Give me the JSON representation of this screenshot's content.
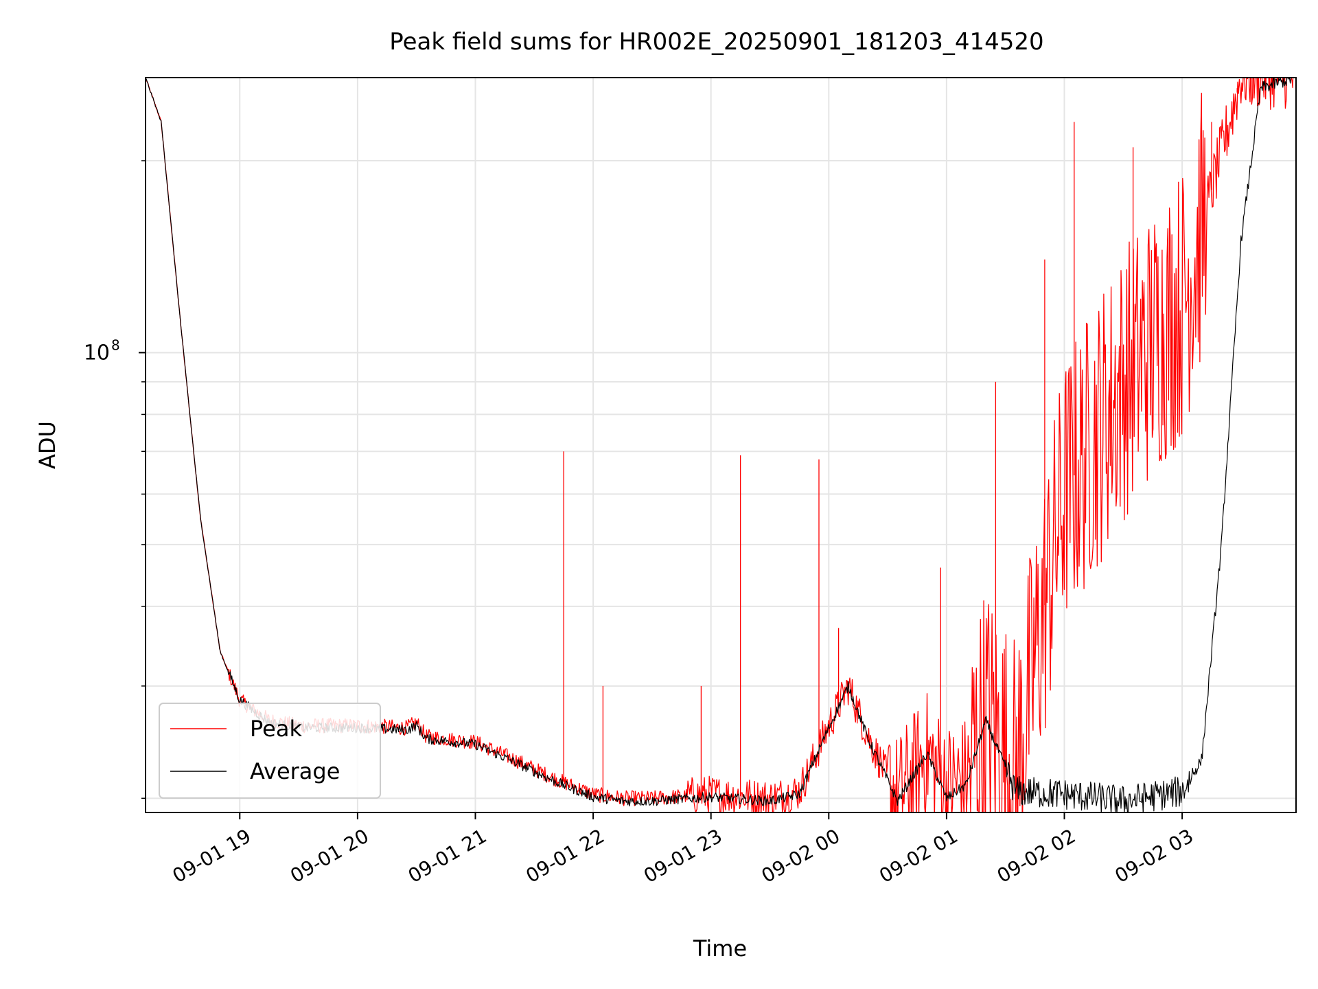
{
  "chart_data": {
    "type": "line",
    "title": "Peak field sums for HR002E_20250901_181203_414520",
    "xlabel": "Time",
    "ylabel": "ADU",
    "x_scale": "time",
    "y_scale": "log",
    "x_range": [
      "2025-09-01 18:12",
      "2025-09-02 03:58"
    ],
    "ylim": [
      19000000,
      270000000
    ],
    "x_tick_labels": [
      "09-01 19",
      "09-01 20",
      "09-01 21",
      "09-01 22",
      "09-01 23",
      "09-02 00",
      "09-02 01",
      "09-02 02",
      "09-02 03"
    ],
    "x_ticks": [
      "2025-09-01 19:00",
      "2025-09-01 20:00",
      "2025-09-01 21:00",
      "2025-09-01 22:00",
      "2025-09-01 23:00",
      "2025-09-02 00:00",
      "2025-09-02 01:00",
      "2025-09-02 02:00",
      "2025-09-02 03:00"
    ],
    "y_tick_labels": [
      {
        "value": 100000000,
        "label": "10",
        "exponent": "8"
      }
    ],
    "y_minor_ticks": [
      20000000,
      30000000,
      40000000,
      50000000,
      60000000,
      70000000,
      80000000,
      90000000,
      200000000
    ],
    "grid": true,
    "legend_position": "lower-left",
    "series": [
      {
        "name": "Peak",
        "color": "#ff0000",
        "points": [
          [
            "2025-09-01 18:12",
            270000000
          ],
          [
            "2025-09-01 18:20",
            230000000
          ],
          [
            "2025-09-01 18:30",
            110000000
          ],
          [
            "2025-09-01 18:40",
            55000000
          ],
          [
            "2025-09-01 18:50",
            34000000
          ],
          [
            "2025-09-01 19:00",
            28500000
          ],
          [
            "2025-09-01 19:15",
            26500000
          ],
          [
            "2025-09-01 19:30",
            26000000
          ],
          [
            "2025-09-01 20:00",
            26000000
          ],
          [
            "2025-09-01 20:25",
            25800000
          ],
          [
            "2025-09-01 20:30",
            26300000
          ],
          [
            "2025-09-01 20:35",
            25000000
          ],
          [
            "2025-09-01 21:00",
            24500000
          ],
          [
            "2025-09-01 21:20",
            23000000
          ],
          [
            "2025-09-01 21:40",
            21500000
          ],
          [
            "2025-09-01 22:00",
            20300000
          ],
          [
            "2025-09-01 22:15",
            20000000
          ],
          [
            "2025-09-01 22:30",
            20000000
          ],
          [
            "2025-09-01 23:00",
            20300000
          ],
          [
            "2025-09-01 23:30",
            20000000
          ],
          [
            "2025-09-01 23:45",
            20500000
          ],
          [
            "2025-09-02 00:00",
            26000000
          ],
          [
            "2025-09-02 00:10",
            30000000
          ],
          [
            "2025-09-02 00:20",
            25000000
          ],
          [
            "2025-09-02 00:35",
            20000000
          ],
          [
            "2025-09-02 00:50",
            23500000
          ],
          [
            "2025-09-02 01:00",
            21000000
          ],
          [
            "2025-09-02 01:10",
            21500000
          ],
          [
            "2025-09-02 01:20",
            27000000
          ],
          [
            "2025-09-02 01:35",
            22000000
          ],
          [
            "2025-09-02 02:00",
            60000000
          ],
          [
            "2025-09-02 02:30",
            90000000
          ],
          [
            "2025-09-02 03:00",
            120000000
          ],
          [
            "2025-09-02 03:30",
            270000000
          ],
          [
            "2025-09-02 03:58",
            270000000
          ]
        ],
        "spikes": [
          [
            "2025-09-01 21:45",
            70000000
          ],
          [
            "2025-09-01 22:05",
            30000000
          ],
          [
            "2025-09-01 22:55",
            30000000
          ],
          [
            "2025-09-01 23:15",
            69000000
          ],
          [
            "2025-09-01 23:55",
            68000000
          ],
          [
            "2025-09-02 00:05",
            37000000
          ],
          [
            "2025-09-02 00:57",
            46000000
          ],
          [
            "2025-09-02 01:25",
            90000000
          ],
          [
            "2025-09-02 01:50",
            140000000
          ],
          [
            "2025-09-02 02:05",
            230000000
          ],
          [
            "2025-09-02 02:35",
            210000000
          ],
          [
            "2025-09-02 03:15",
            230000000
          ],
          [
            "2025-09-02 03:28",
            260000000
          ]
        ]
      },
      {
        "name": "Average",
        "color": "#000000",
        "points": [
          [
            "2025-09-01 18:12",
            270000000
          ],
          [
            "2025-09-01 18:20",
            230000000
          ],
          [
            "2025-09-01 18:30",
            110000000
          ],
          [
            "2025-09-01 18:40",
            55000000
          ],
          [
            "2025-09-01 18:50",
            34000000
          ],
          [
            "2025-09-01 19:00",
            28500000
          ],
          [
            "2025-09-01 19:15",
            26300000
          ],
          [
            "2025-09-01 19:30",
            25800000
          ],
          [
            "2025-09-01 20:00",
            25800000
          ],
          [
            "2025-09-01 20:25",
            25600000
          ],
          [
            "2025-09-01 20:30",
            26000000
          ],
          [
            "2025-09-01 20:35",
            24800000
          ],
          [
            "2025-09-01 21:00",
            24300000
          ],
          [
            "2025-09-01 21:20",
            22800000
          ],
          [
            "2025-09-01 21:40",
            21300000
          ],
          [
            "2025-09-01 22:00",
            20100000
          ],
          [
            "2025-09-01 22:15",
            19800000
          ],
          [
            "2025-09-01 22:30",
            19800000
          ],
          [
            "2025-09-01 23:00",
            20100000
          ],
          [
            "2025-09-01 23:30",
            19800000
          ],
          [
            "2025-09-01 23:45",
            20300000
          ],
          [
            "2025-09-02 00:00",
            25800000
          ],
          [
            "2025-09-02 00:10",
            30000000
          ],
          [
            "2025-09-02 00:20",
            24800000
          ],
          [
            "2025-09-02 00:35",
            19800000
          ],
          [
            "2025-09-02 00:50",
            23500000
          ],
          [
            "2025-09-02 01:00",
            20000000
          ],
          [
            "2025-09-02 01:10",
            21000000
          ],
          [
            "2025-09-02 01:20",
            26500000
          ],
          [
            "2025-09-02 01:35",
            20500000
          ],
          [
            "2025-09-02 02:00",
            20300000
          ],
          [
            "2025-09-02 02:30",
            19800000
          ],
          [
            "2025-09-02 03:00",
            20500000
          ],
          [
            "2025-09-02 03:10",
            23000000
          ],
          [
            "2025-09-02 03:20",
            50000000
          ],
          [
            "2025-09-02 03:30",
            150000000
          ],
          [
            "2025-09-02 03:40",
            260000000
          ],
          [
            "2025-09-02 03:58",
            270000000
          ]
        ]
      }
    ]
  }
}
